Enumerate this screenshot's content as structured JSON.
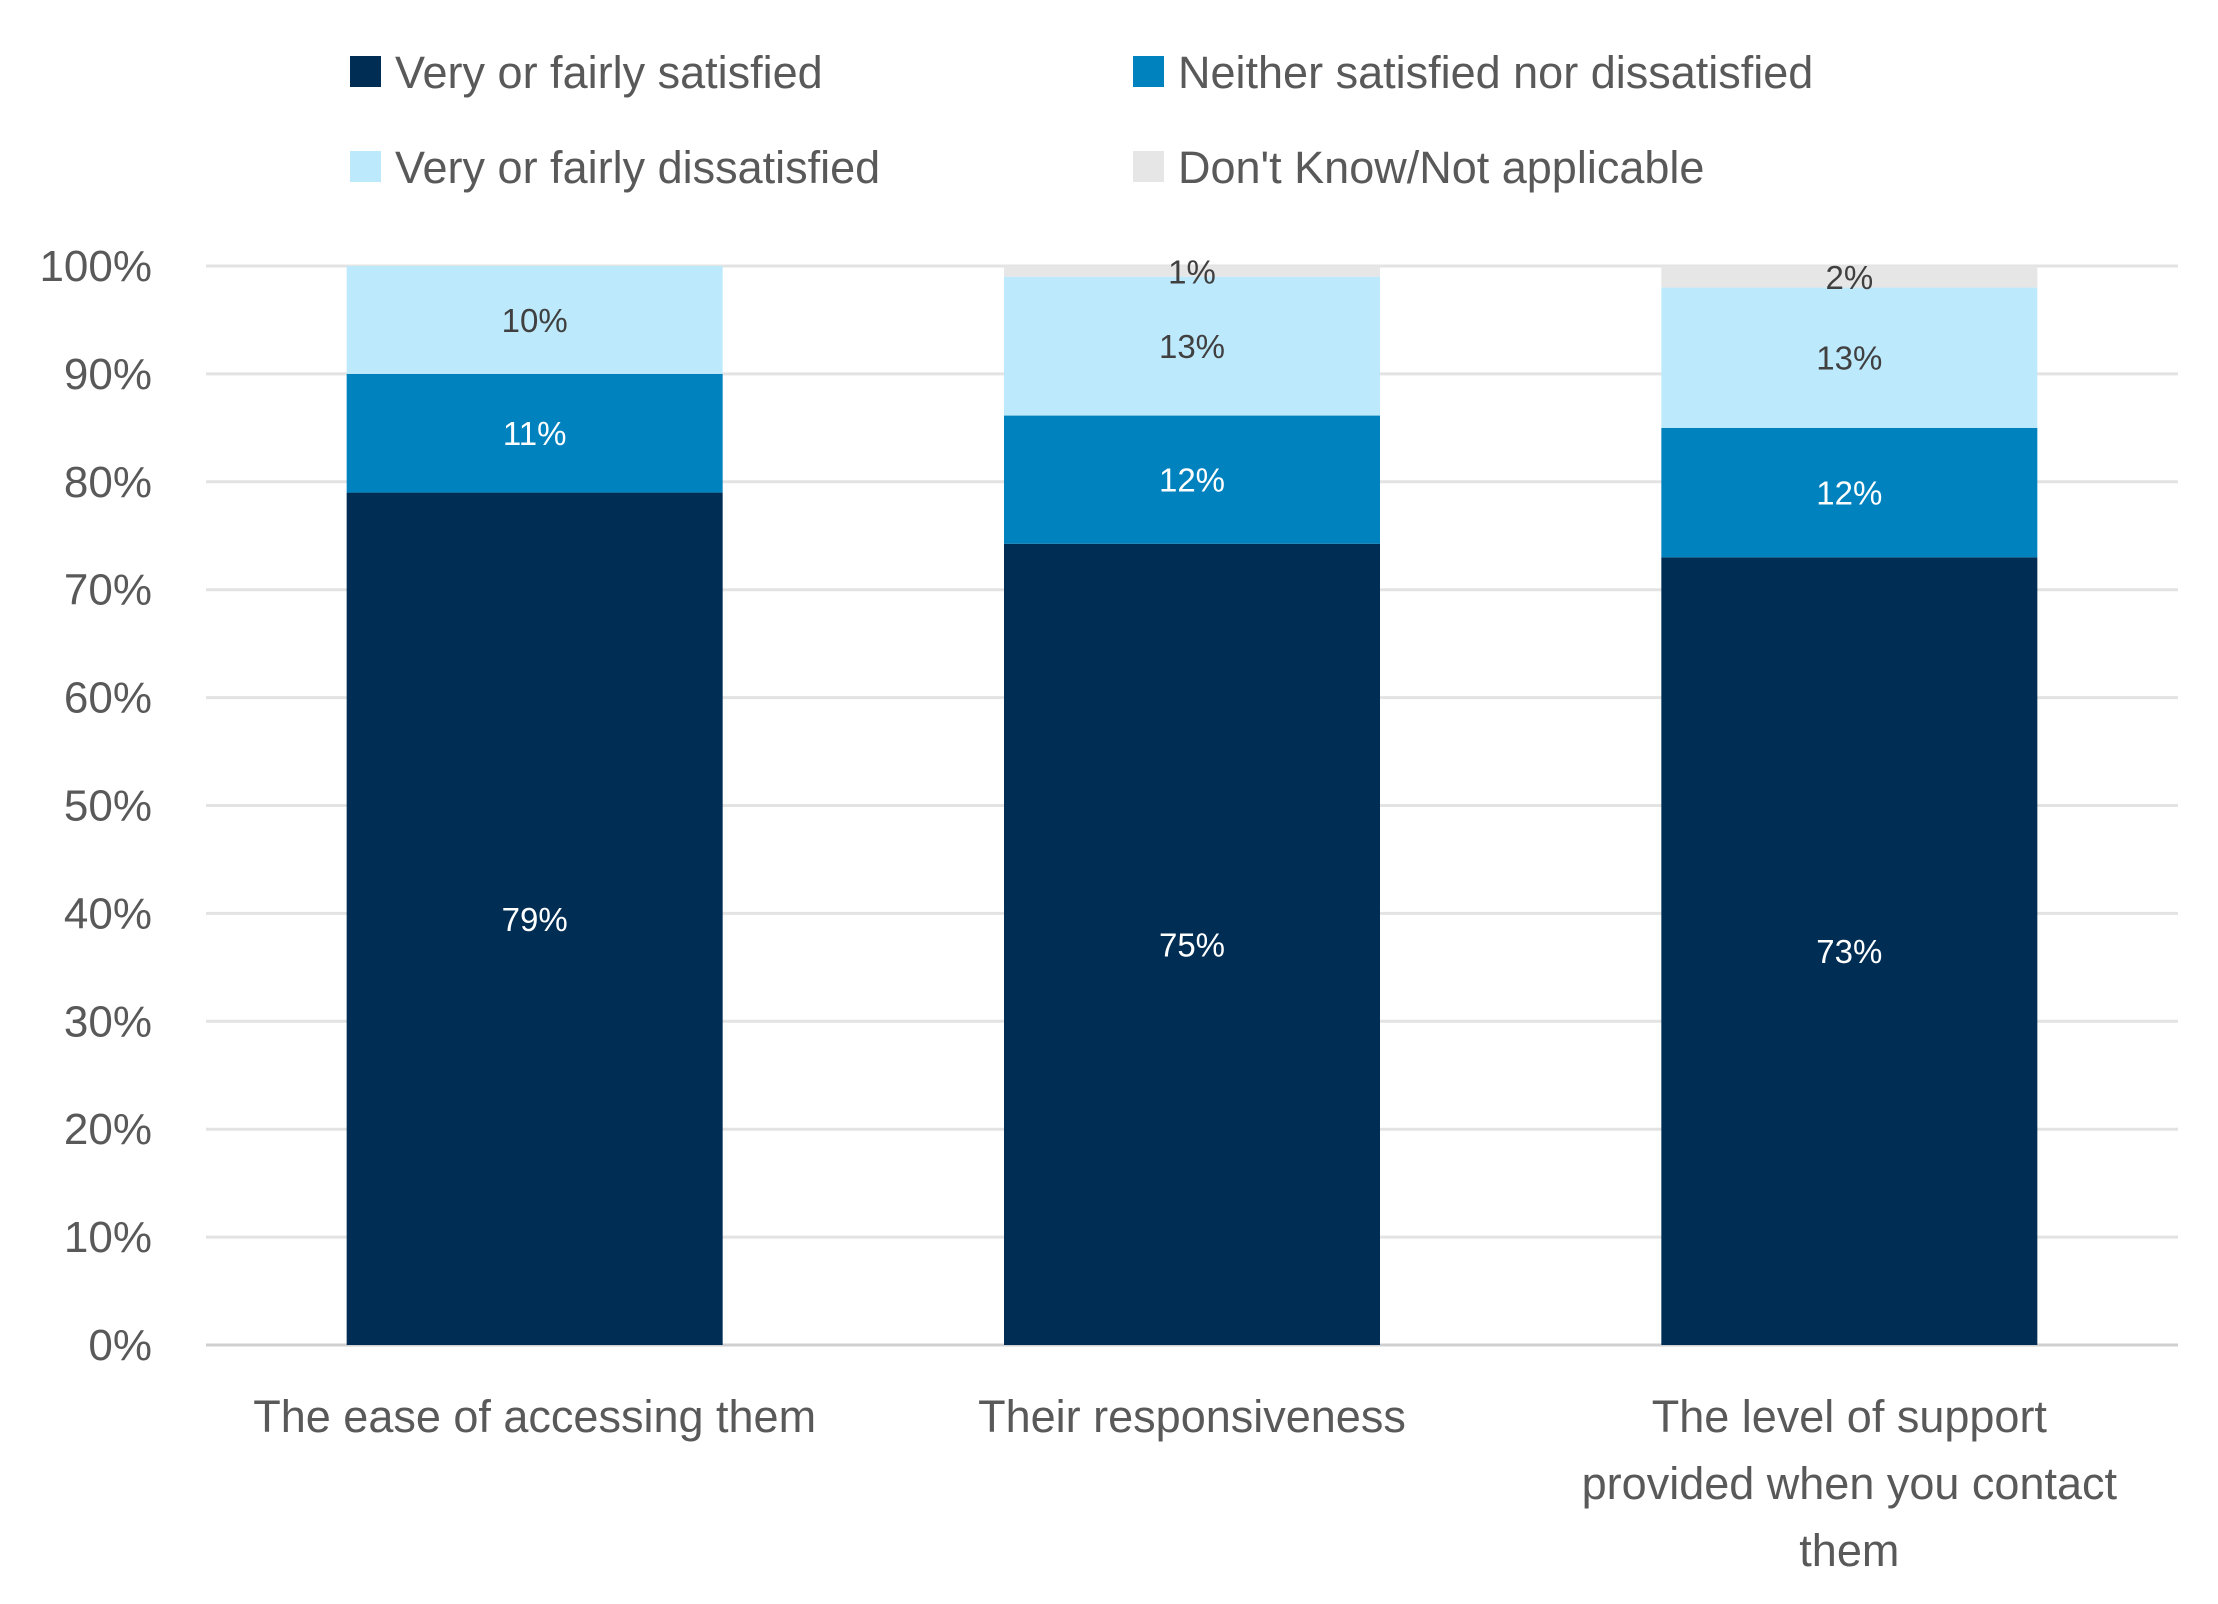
{
  "chart_data": {
    "type": "bar",
    "stacked": true,
    "percent_stacked": true,
    "categories": [
      [
        "The ease of accessing them"
      ],
      [
        "Their responsiveness"
      ],
      [
        "The level of support",
        "provided when you contact",
        "them"
      ]
    ],
    "series": [
      {
        "name": "Very or fairly satisfied",
        "color": "#002d54",
        "label_color": "#ffffff",
        "values": [
          79,
          75,
          73
        ]
      },
      {
        "name": "Neither satisfied nor dissatisfied",
        "color": "#0082be",
        "label_color": "#ffffff",
        "values": [
          11,
          12,
          12
        ]
      },
      {
        "name": "Very or fairly dissatisfied",
        "color": "#bde9fc",
        "label_color": "#404040",
        "values": [
          10,
          13,
          13
        ]
      },
      {
        "name": "Don't Know/Not applicable",
        "color": "#e6e6e6",
        "label_color": "#404040",
        "values": [
          0,
          1,
          2
        ]
      }
    ],
    "data_labels": [
      [
        "79%",
        "75%",
        "73%"
      ],
      [
        "11%",
        "12%",
        "12%"
      ],
      [
        "10%",
        "13%",
        "13%"
      ],
      [
        "",
        "1%",
        "2%"
      ]
    ],
    "yticks": [
      "0%",
      "10%",
      "20%",
      "30%",
      "40%",
      "50%",
      "60%",
      "70%",
      "80%",
      "90%",
      "100%"
    ],
    "ylim": [
      0,
      100
    ],
    "grid": true,
    "legend_position": "top",
    "xlabel": "",
    "ylabel": ""
  }
}
